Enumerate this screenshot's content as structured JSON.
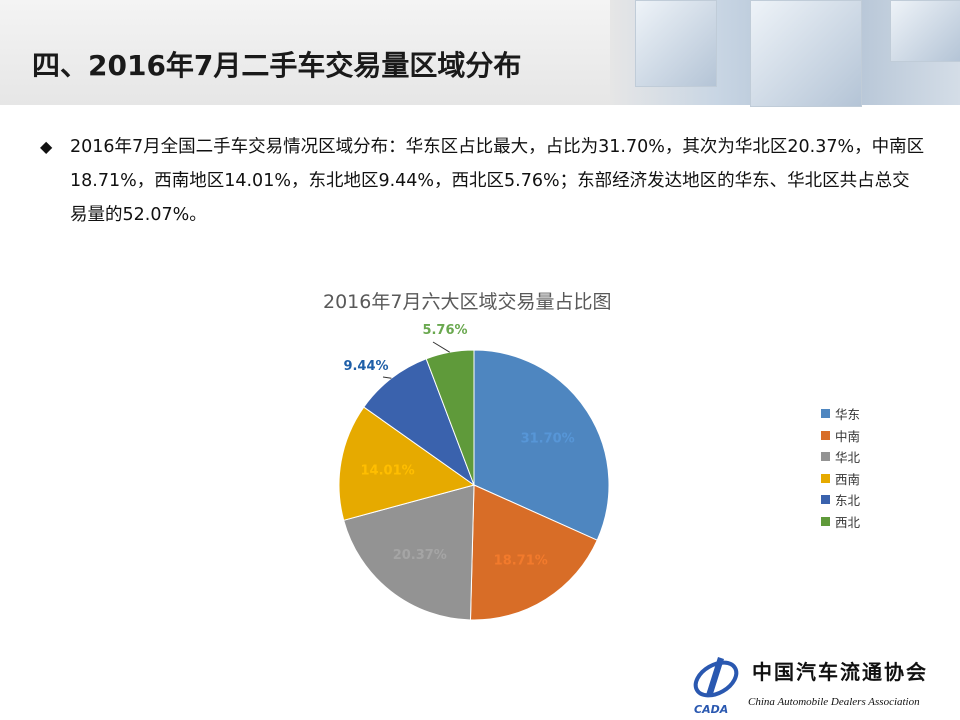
{
  "header": {
    "title": "四、2016年7月二手车交易量区域分布"
  },
  "bullet": {
    "symbol": "◆",
    "text": "2016年7月全国二手车交易情况区域分布：华东区占比最大，占比为31.70%，其次为华北区20.37%，中南区18.71%，西南地区14.01%，东北地区9.44%，西北区5.76%；东部经济发达地区的华东、华北区共占总交易量的52.07%。"
  },
  "chart_data": {
    "type": "pie",
    "title": "2016年7月六大区域交易量占比图",
    "categories": [
      "华东",
      "中南",
      "华北",
      "西南",
      "东北",
      "西北"
    ],
    "values": [
      31.7,
      18.71,
      20.37,
      14.01,
      9.44,
      5.76
    ],
    "labels": [
      "31.70%",
      "18.71%",
      "20.37%",
      "14.01%",
      "9.44%",
      "5.76%"
    ],
    "colors": [
      "#4e86c0",
      "#d86d27",
      "#939393",
      "#e6aa00",
      "#3a62ad",
      "#5f9a3a"
    ],
    "start": "top",
    "direction": "clockwise",
    "legend_position": "right"
  },
  "logo": {
    "cn": "中国汽车流通协会",
    "en": "China Automobile Dealers Association",
    "abbr": "CADA"
  }
}
